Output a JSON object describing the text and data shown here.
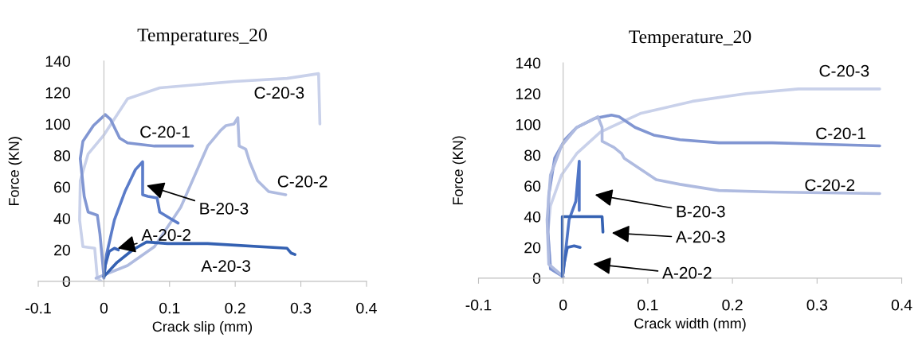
{
  "chart_data": [
    {
      "type": "line",
      "title": "Temperatures_20",
      "xlabel": "Crack slip (mm)",
      "ylabel": "Force (KN)",
      "xlim": [
        -0.1,
        0.4
      ],
      "xticks": [
        -0.1,
        0,
        0.1,
        0.2,
        0.3,
        0.4
      ],
      "ylim": [
        0,
        140
      ],
      "yticks": [
        0,
        20,
        40,
        60,
        80,
        100,
        120,
        140
      ],
      "grid": false,
      "legend": false,
      "marker": "none",
      "line_style": "solid",
      "series": [
        {
          "color": "#c9d1ea",
          "x": [
            -0.004,
            -0.01,
            -0.014,
            -0.032,
            -0.037,
            -0.036,
            -0.024,
            0,
            0.036,
            0.085,
            0.198,
            0.279,
            0.327,
            0.329
          ],
          "values": [
            0,
            2,
            21,
            22,
            39,
            64,
            81,
            93,
            116,
            123,
            127,
            129,
            132,
            100
          ]
        },
        {
          "color": "#afbbe0",
          "x": [
            -0.012,
            0.036,
            0.077,
            0.117,
            0.158,
            0.178,
            0.186,
            0.198,
            0.204,
            0.206,
            0.216,
            0.222,
            0.234,
            0.251,
            0.277
          ],
          "values": [
            2,
            10,
            22,
            47,
            86,
            96,
            99,
            100,
            104,
            86,
            84,
            76,
            64,
            57,
            55
          ]
        },
        {
          "color": "#8196d2",
          "x": [
            0,
            -0.006,
            -0.01,
            -0.024,
            -0.03,
            -0.036,
            -0.032,
            -0.016,
            0.002,
            0.01,
            0.024,
            0.036,
            0.077,
            0.135
          ],
          "values": [
            3,
            30,
            42,
            44,
            54,
            78,
            89,
            99,
            106,
            103,
            91,
            88,
            86,
            86
          ]
        },
        {
          "color": "#5b7cc9",
          "x": [
            0,
            0.004,
            0.016,
            0.032,
            0.048,
            0.059,
            0.059,
            0.067,
            0.081,
            0.085,
            0.101,
            0.113
          ],
          "values": [
            2,
            17,
            39,
            57,
            71,
            76,
            55,
            54,
            53,
            44,
            40,
            37
          ]
        },
        {
          "color": "#3c66b9",
          "x": [
            0,
            0.002,
            0.008,
            0.016,
            0.022
          ],
          "values": [
            3,
            10,
            19,
            21,
            20
          ]
        },
        {
          "color": "#3461b2",
          "x": [
            0,
            0.02,
            0.044,
            0.065,
            0.097,
            0.158,
            0.279,
            0.285,
            0.291
          ],
          "values": [
            3,
            12,
            20,
            25,
            24,
            24,
            21,
            18,
            17
          ]
        }
      ],
      "annotations": [
        {
          "text": "C-20-3",
          "x": 0.267,
          "y": 126
        },
        {
          "text": "C-20-1",
          "x": 0.093,
          "y": 87
        },
        {
          "text": "C-20-2",
          "x": 0.277,
          "y": 55
        },
        {
          "text": "B-20-3",
          "x": 0.065,
          "y": 61
        },
        {
          "text": "A-20-2",
          "x": 0.021,
          "y": 21
        },
        {
          "text": "A-20-3",
          "x": 0.186,
          "y": 24
        }
      ]
    },
    {
      "type": "line",
      "title": "Temperature_20",
      "xlabel": "Crack width (mm)",
      "ylabel": "Force (KN)",
      "xlim": [
        -0.1,
        0.4
      ],
      "xticks": [
        -0.1,
        0,
        0.1,
        0.2,
        0.3,
        0.4
      ],
      "ylim": [
        0,
        140
      ],
      "yticks": [
        0,
        20,
        40,
        60,
        80,
        100,
        120,
        140
      ],
      "grid": false,
      "legend": false,
      "marker": "none",
      "line_style": "solid",
      "series": [
        {
          "color": "#c9d1ea",
          "x": [
            0,
            -0.015,
            -0.018,
            -0.015,
            -0.002,
            0.016,
            0.044,
            0.091,
            0.153,
            0.216,
            0.278,
            0.374
          ],
          "values": [
            1,
            8,
            30,
            47,
            67,
            81,
            95,
            107,
            115,
            120,
            123,
            123
          ]
        },
        {
          "color": "#8196d2",
          "x": [
            0,
            -0.015,
            -0.018,
            -0.017,
            -0.01,
            0.002,
            0.016,
            0.038,
            0.057,
            0.066,
            0.085,
            0.107,
            0.138,
            0.184,
            0.247,
            0.374
          ],
          "values": [
            1,
            6,
            30,
            54,
            78,
            90,
            98,
            104,
            106,
            105,
            98,
            93,
            90,
            88,
            88,
            86
          ]
        },
        {
          "color": "#afbbe0",
          "x": [
            0,
            -0.017,
            -0.019,
            -0.015,
            -0.002,
            0.016,
            0.041,
            0.046,
            0.046,
            0.06,
            0.069,
            0.072,
            0.091,
            0.11,
            0.138,
            0.184,
            0.247,
            0.374
          ],
          "values": [
            1,
            9,
            38,
            67,
            86,
            98,
            105,
            98,
            89,
            85,
            81,
            78,
            71,
            64,
            61,
            57,
            56,
            55
          ]
        },
        {
          "color": "#4f75c6",
          "x": [
            0,
            0.007,
            0.015,
            0.019,
            0.019
          ],
          "values": [
            3,
            38,
            50,
            76,
            44
          ]
        },
        {
          "color": "#3461b2",
          "x": [
            -0.001,
            -0.001,
            0.046,
            0.047
          ],
          "values": [
            1,
            40,
            40,
            30
          ]
        },
        {
          "color": "#3c66b9",
          "x": [
            -0.001,
            0.001,
            0.005,
            0.013,
            0.02
          ],
          "values": [
            1,
            9,
            20,
            21,
            20
          ]
        }
      ],
      "annotations": [
        {
          "text": "C-20-3",
          "x": 0.332,
          "y": 123
        },
        {
          "text": "C-20-1",
          "x": 0.328,
          "y": 87
        },
        {
          "text": "C-20-2",
          "x": 0.315,
          "y": 56
        },
        "B-20-3",
        "A-20-3",
        "A-20-2"
      ]
    }
  ]
}
